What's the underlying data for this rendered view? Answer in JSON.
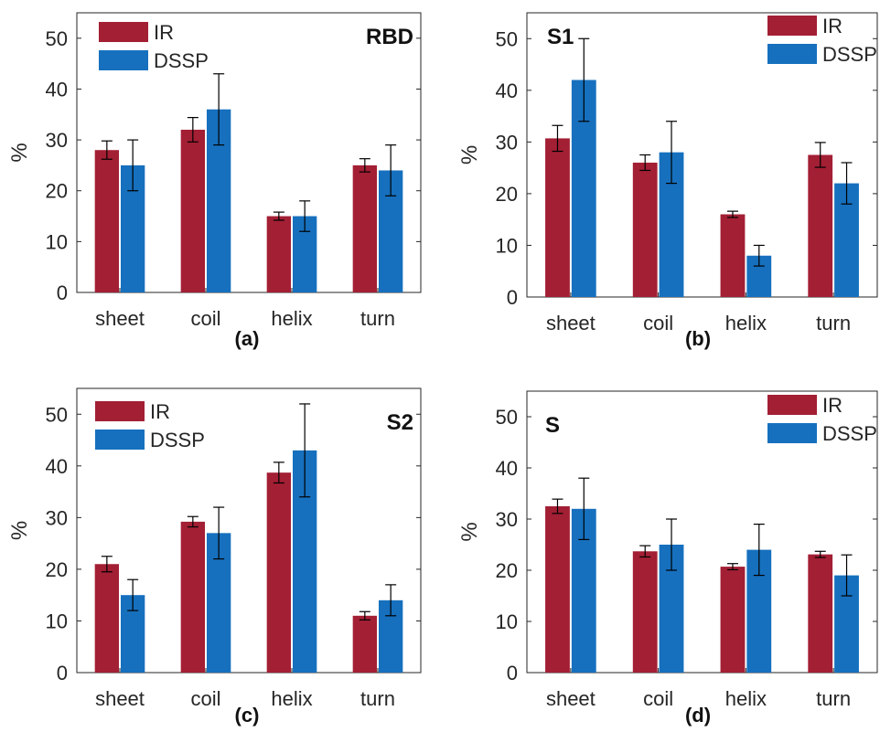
{
  "colors": {
    "ir": "#A31F34",
    "dssp": "#1670BE",
    "error_bar": "#000000"
  },
  "chart_data": [
    {
      "type": "bar",
      "panel_label": "(a)",
      "tag": "RBD",
      "ylabel": "%",
      "ylim": [
        0,
        55
      ],
      "yticks": [
        0,
        10,
        20,
        30,
        40,
        50
      ],
      "categories": [
        "sheet",
        "coil",
        "helix",
        "turn"
      ],
      "legend_position": "top-left",
      "series": [
        {
          "name": "IR",
          "values": [
            28,
            32,
            15,
            25
          ],
          "errors": [
            1.8,
            2.4,
            0.8,
            1.3
          ]
        },
        {
          "name": "DSSP",
          "values": [
            25,
            36,
            15,
            24
          ],
          "errors": [
            5,
            7,
            3,
            5
          ]
        }
      ]
    },
    {
      "type": "bar",
      "panel_label": "(b)",
      "tag": "S1",
      "ylabel": "%",
      "ylim": [
        0,
        55
      ],
      "yticks": [
        0,
        10,
        20,
        30,
        40,
        50
      ],
      "categories": [
        "sheet",
        "coil",
        "helix",
        "turn"
      ],
      "legend_position": "top-right",
      "series": [
        {
          "name": "IR",
          "values": [
            30.7,
            26,
            16,
            27.5
          ],
          "errors": [
            2.5,
            1.5,
            0.6,
            2.4
          ]
        },
        {
          "name": "DSSP",
          "values": [
            42,
            28,
            8,
            22
          ],
          "errors": [
            8,
            6,
            2,
            4
          ]
        }
      ]
    },
    {
      "type": "bar",
      "panel_label": "(c)",
      "tag": "S2",
      "ylabel": "%",
      "ylim": [
        0,
        55
      ],
      "yticks": [
        0,
        10,
        20,
        30,
        40,
        50
      ],
      "categories": [
        "sheet",
        "coil",
        "helix",
        "turn"
      ],
      "legend_position": "top-left",
      "series": [
        {
          "name": "IR",
          "values": [
            21,
            29.2,
            38.7,
            11
          ],
          "errors": [
            1.5,
            1,
            2,
            0.8
          ]
        },
        {
          "name": "DSSP",
          "values": [
            15,
            27,
            43,
            14
          ],
          "errors": [
            3,
            5,
            9,
            3
          ]
        }
      ]
    },
    {
      "type": "bar",
      "panel_label": "(d)",
      "tag": "S",
      "ylabel": "%",
      "ylim": [
        0,
        55
      ],
      "yticks": [
        0,
        10,
        20,
        30,
        40,
        50
      ],
      "categories": [
        "sheet",
        "coil",
        "helix",
        "turn"
      ],
      "legend_position": "top-right",
      "series": [
        {
          "name": "IR",
          "values": [
            32.5,
            23.7,
            20.7,
            23.1
          ],
          "errors": [
            1.4,
            1.1,
            0.6,
            0.6
          ]
        },
        {
          "name": "DSSP",
          "values": [
            32,
            25,
            24,
            19
          ],
          "errors": [
            6,
            5,
            5,
            4
          ]
        }
      ]
    }
  ]
}
